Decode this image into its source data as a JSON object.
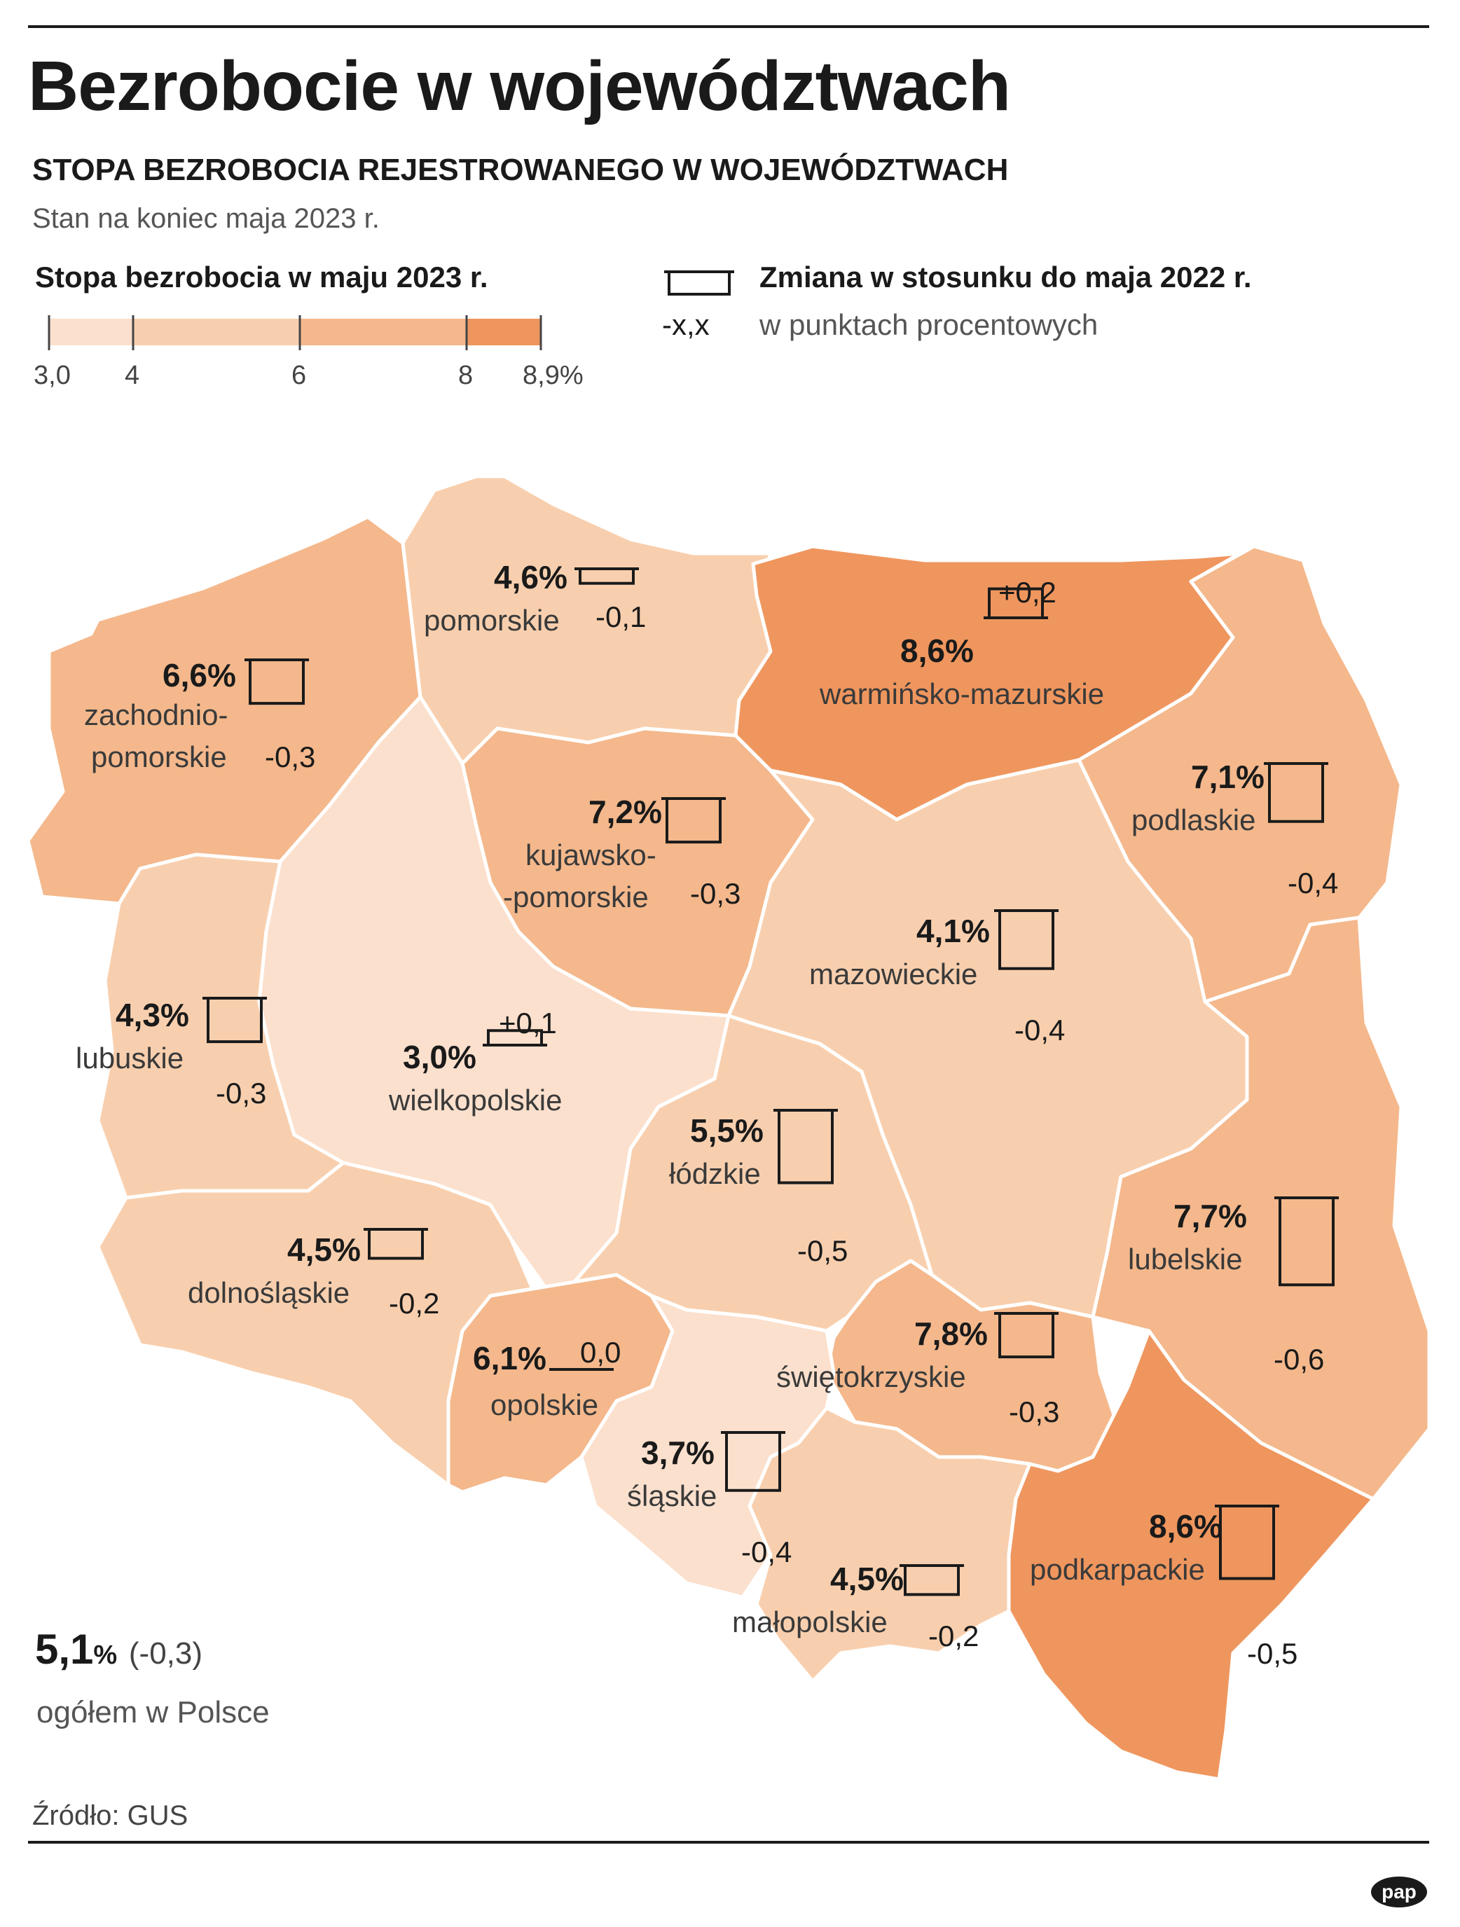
{
  "title": "Bezrobocie w województwach",
  "subtitle": "STOPA BEZROBOCIA REJESTROWANEGO W WOJEWÓDZTWACH",
  "date_note": "Stan na koniec maja 2023 r.",
  "legend": {
    "rate_title": "Stopa bezrobocia w maju 2023 r.",
    "ticks": [
      "3,0",
      "4",
      "6",
      "8",
      "8,9%"
    ],
    "bins": [
      {
        "from": 3.0,
        "to": 4,
        "color": "#fbe0cd"
      },
      {
        "from": 4,
        "to": 6,
        "color": "#f8cfae"
      },
      {
        "from": 6,
        "to": 8,
        "color": "#f4b88c"
      },
      {
        "from": 8,
        "to": 8.9,
        "color": "#ef965e"
      }
    ],
    "change_title": "Zmiana w stosunku do maja 2022 r.",
    "change_unit": "w punktach procentowych",
    "change_sample": "-x,x"
  },
  "regions": [
    {
      "name": "pomorskie",
      "rate": "4,6%",
      "change": "-0,1"
    },
    {
      "name": "warmińsko-mazurskie",
      "rate": "8,6%",
      "change": "+0,2"
    },
    {
      "name_lines": [
        "zachodnio-",
        "pomorskie"
      ],
      "rate": "6,6%",
      "change": "-0,3"
    },
    {
      "name_lines": [
        "kujawsko-",
        "-pomorskie"
      ],
      "rate": "7,2%",
      "change": "-0,3"
    },
    {
      "name": "podlaskie",
      "rate": "7,1%",
      "change": "-0,4"
    },
    {
      "name": "mazowieckie",
      "rate": "4,1%",
      "change": "-0,4"
    },
    {
      "name": "lubuskie",
      "rate": "4,3%",
      "change": "-0,3"
    },
    {
      "name": "wielkopolskie",
      "rate": "3,0%",
      "change": "+0,1"
    },
    {
      "name": "łódzkie",
      "rate": "5,5%",
      "change": "-0,5"
    },
    {
      "name": "lubelskie",
      "rate": "7,7%",
      "change": "-0,6"
    },
    {
      "name": "dolnośląskie",
      "rate": "4,5%",
      "change": "-0,2"
    },
    {
      "name": "opolskie",
      "rate": "6,1%",
      "change": "0,0"
    },
    {
      "name": "świętokrzyskie",
      "rate": "7,8%",
      "change": "-0,3"
    },
    {
      "name": "śląskie",
      "rate": "3,7%",
      "change": "-0,4"
    },
    {
      "name": "podkarpackie",
      "rate": "8,6%",
      "change": "-0,5"
    },
    {
      "name": "małopolskie",
      "rate": "4,5%",
      "change": "-0,2"
    }
  ],
  "national": {
    "value": "5,1",
    "unit": "%",
    "change": "(-0,3)",
    "label": "ogółem w Polsce"
  },
  "source": "Źródło: GUS",
  "logo_text": "pap",
  "colors": {
    "bin1": "#fbe0cd",
    "bin2": "#f8cfae",
    "bin3": "#f4b88c",
    "bin4": "#ef965e",
    "border": "#ffffff"
  }
}
